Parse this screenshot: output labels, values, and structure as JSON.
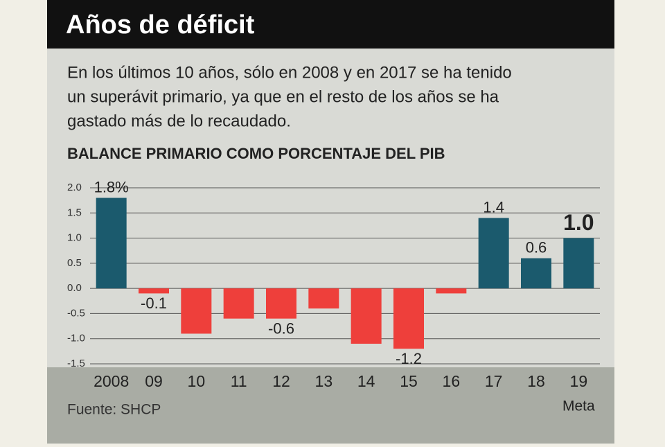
{
  "chart_data": {
    "type": "bar",
    "title": "Años de déficit",
    "subtitle": [
      "En los últimos 10 años, sólo en 2008 y en 2017 se ha tenido",
      "un superávit primario, ya que en el resto de los años se ha",
      "gastado más de lo recaudado."
    ],
    "chart_title": "BALANCE PRIMARIO COMO PORCENTAJE DEL PIB",
    "categories": [
      "2008",
      "09",
      "10",
      "11",
      "12",
      "13",
      "14",
      "15",
      "16",
      "17",
      "18",
      "19"
    ],
    "category_sublabels": [
      null,
      null,
      null,
      null,
      null,
      null,
      null,
      null,
      null,
      null,
      null,
      "Meta"
    ],
    "values": [
      1.8,
      -0.1,
      -0.9,
      -0.6,
      -0.6,
      -0.4,
      -1.1,
      -1.2,
      -0.1,
      1.4,
      0.6,
      1.0
    ],
    "value_labels": [
      "1.8%",
      "-0.1",
      null,
      null,
      "-0.6",
      null,
      null,
      "-1.2",
      null,
      "1.4",
      "0.6",
      "1.0"
    ],
    "positive_color": "#1b5a6d",
    "negative_color": "#ee3f3b",
    "ylim": [
      -1.5,
      2.0
    ],
    "yticks": [
      {
        "value": 2,
        "label": "2.0"
      },
      1.5,
      {
        "value": 1,
        "label": "1.0"
      },
      0.5,
      {
        "value": 0,
        "label": "0.0"
      },
      -0.5,
      {
        "value": -1,
        "label": "-1.0"
      },
      -1.5
    ],
    "grid": true,
    "source": "Fuente: SHCP"
  }
}
